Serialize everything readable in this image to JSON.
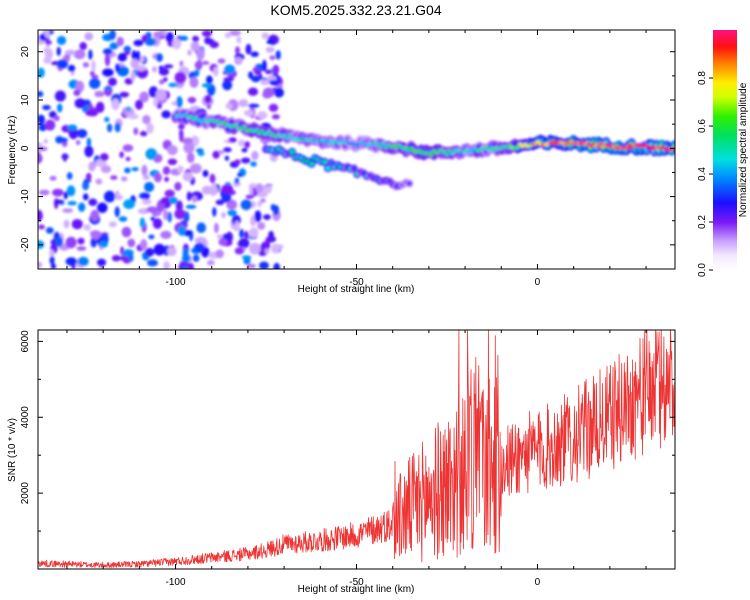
{
  "chart_data": [
    {
      "type": "heatmap",
      "title": "KOM5.2025.332.23.21.G04",
      "xlabel": "Height of straight line (km)",
      "ylabel": "Frequency (Hz)",
      "xlim": [
        -138,
        38
      ],
      "ylim": [
        -25,
        24.5
      ],
      "x_ticks": [
        -100,
        -50,
        0
      ],
      "y_ticks": [
        -20,
        -10,
        0,
        10,
        20
      ],
      "colorbar": {
        "label": "Normalized spectral amplitude",
        "range": [
          0,
          1
        ],
        "ticks": [
          "0.0",
          "0.2",
          "0.4",
          "0.6",
          "0.8"
        ],
        "tick_values": [
          0,
          0.2,
          0.4,
          0.6,
          0.8
        ]
      },
      "ridge": {
        "x": [
          -100,
          -90,
          -80,
          -70,
          -60,
          -50,
          -40,
          -30,
          -20,
          -10,
          0,
          10,
          20,
          30,
          38
        ],
        "frequency": [
          7,
          5.5,
          4,
          2.5,
          1.5,
          1,
          0.5,
          -1,
          -0.5,
          0,
          1,
          1,
          0.5,
          0.2,
          0
        ],
        "amplitude": [
          0.45,
          0.5,
          0.55,
          0.5,
          0.45,
          0.4,
          0.55,
          0.6,
          0.45,
          0.55,
          0.85,
          0.95,
          0.95,
          0.97,
          1.0
        ]
      },
      "secondary_branch": {
        "x": [
          -75,
          -65,
          -55,
          -45,
          -35
        ],
        "frequency": [
          0,
          -2,
          -4,
          -6,
          -8
        ],
        "amplitude": [
          0.5,
          0.55,
          0.55,
          0.4,
          0.3
        ]
      },
      "noise_region": {
        "x": [
          -138,
          -75
        ],
        "frequency": [
          -25,
          24.5
        ],
        "amplitude_range": [
          0.1,
          0.4
        ]
      }
    },
    {
      "type": "line",
      "title": "",
      "xlabel": "Height of straight line (km)",
      "ylabel": "SNR (10 * v/v)",
      "xlim": [
        -138,
        38
      ],
      "ylim": [
        0,
        6300
      ],
      "x_ticks": [
        -100,
        -50,
        0
      ],
      "y_ticks": [
        2000,
        4000,
        6000
      ],
      "color": "#ee3333",
      "series": [
        {
          "name": "SNR",
          "x": [
            -138,
            -130,
            -120,
            -110,
            -100,
            -90,
            -80,
            -75,
            -70,
            -60,
            -50,
            -40,
            -35,
            -30,
            -25,
            -20,
            -18,
            -15,
            -10,
            -5,
            0,
            5,
            10,
            20,
            30,
            38
          ],
          "values": [
            150,
            130,
            100,
            130,
            200,
            300,
            400,
            500,
            650,
            750,
            900,
            1200,
            1600,
            1900,
            2200,
            2600,
            3200,
            2600,
            2700,
            3000,
            3100,
            3300,
            3500,
            4000,
            4700,
            5000
          ]
        }
      ]
    }
  ]
}
